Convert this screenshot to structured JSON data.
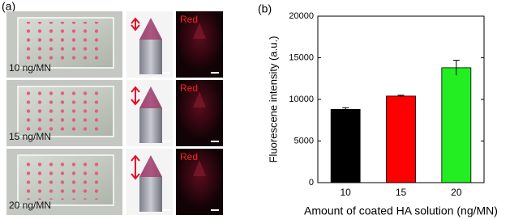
{
  "panel_a": {
    "label": "(a)",
    "rows": [
      {
        "caption": "10 ng/MN",
        "channel": "Red"
      },
      {
        "caption": "15 ng/MN",
        "channel": "Red"
      },
      {
        "caption": "20 ng/MN",
        "channel": "Red"
      }
    ]
  },
  "chart_data": {
    "type": "bar",
    "panel_label": "(b)",
    "x_label": "Amount of coated HA solution (ng/MN)",
    "y_label": "Fluorescene intensity (a.u.)",
    "categories": [
      "10",
      "15",
      "20"
    ],
    "values": [
      8800,
      10400,
      13800
    ],
    "errors": [
      200,
      100,
      900
    ],
    "colors": [
      "#000000",
      "#ff0000",
      "#22ee22"
    ],
    "ylim": [
      0,
      20000
    ],
    "yticks": [
      0,
      5000,
      10000,
      15000,
      20000
    ],
    "grid": false
  }
}
